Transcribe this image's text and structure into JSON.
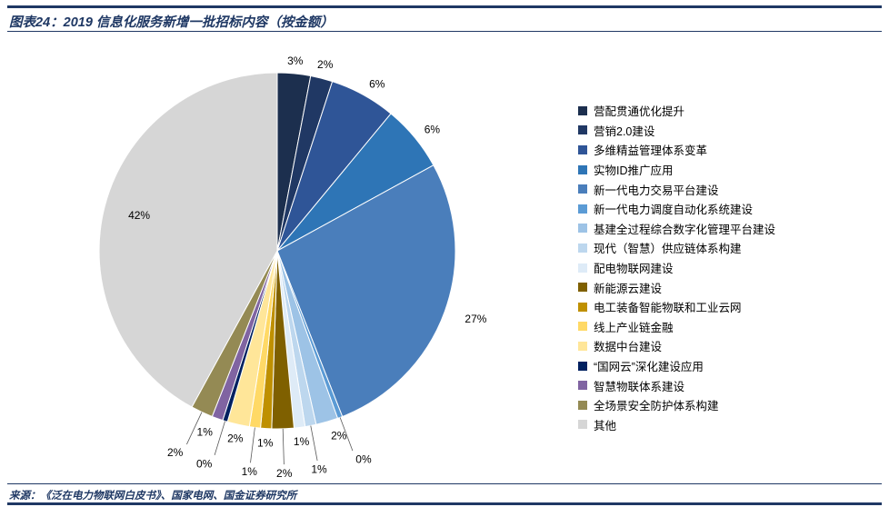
{
  "figure": {
    "title": "图表24：2019 信息化服务新增一批招标内容（按金额）",
    "source": "来源：《泛在电力物联网白皮书》、国家电网、国金证券研究所",
    "accent_color": "#1F3864"
  },
  "chart_data": {
    "type": "pie",
    "title": "2019 信息化服务新增一批招标内容（按金额）",
    "legend_position": "right",
    "start_angle_deg": 0,
    "direction": "clockwise",
    "categories": [
      "营配贯通优化提升",
      "营销2.0建设",
      "多维精益管理体系变革",
      "实物ID推广应用",
      "新一代电力交易平台建设",
      "新一代电力调度自动化系统建设",
      "基建全过程综合数字化管理平台建设",
      "现代（智慧）供应链体系构建",
      "配电物联网建设",
      "新能源云建设",
      "电工装备智能物联和工业云网",
      "线上产业链金融",
      "数据中台建设",
      "“国网云”深化建设应用",
      "智慧物联体系建设",
      "全场景安全防护体系构建",
      "其他"
    ],
    "values": [
      3,
      2,
      6,
      6,
      27,
      0,
      2,
      1,
      1,
      2,
      1,
      1,
      2,
      0,
      1,
      2,
      42
    ],
    "labels": [
      "3%",
      "2%",
      "6%",
      "6%",
      "27%",
      "0%",
      "2%",
      "1%",
      "1%",
      "2%",
      "1%",
      "1%",
      "2%",
      "0%",
      "1%",
      "2%",
      "42%"
    ],
    "colors": [
      "#1C2F4E",
      "#203864",
      "#2F5597",
      "#2E75B6",
      "#4A7EBB",
      "#5B9BD5",
      "#9DC3E6",
      "#BDD7EE",
      "#DEEBF7",
      "#7F6000",
      "#BF9000",
      "#FFD966",
      "#FFE699",
      "#002060",
      "#8064A2",
      "#948A54",
      "#D6D6D6"
    ]
  }
}
